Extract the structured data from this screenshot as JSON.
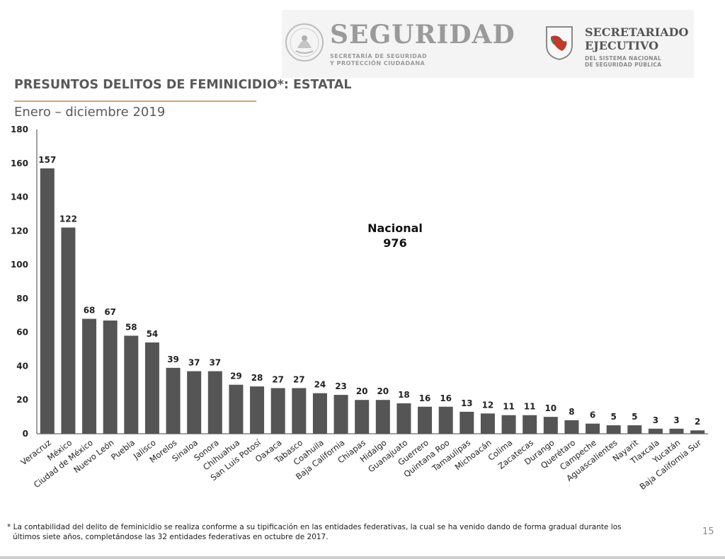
{
  "header": {
    "seg_title": "SEGURIDAD",
    "seg_sub_1": "SECRETARÍA DE SEGURIDAD",
    "seg_sub_2": "Y PROTECCIÓN CIUDADANA",
    "sec_title_1": "SECRETARIADO",
    "sec_title_2": "EJECUTIVO",
    "sec_sub_1": "DEL SISTEMA NACIONAL",
    "sec_sub_2": "DE SEGURIDAD PÚBLICA"
  },
  "page": {
    "title": "PRESUNTOS DELITOS DE FEMINICIDIO*: ESTATAL",
    "subtitle": "Enero – diciembre 2019",
    "footnote_line1": "* La contabilidad del delito de feminicidio se realiza conforme a su tipificación en las entidades federativas, la cual se ha venido dando de forma gradual durante los",
    "footnote_line2": "últimos siete años, completándose las 32 entidades federativas en octubre de 2017.",
    "page_number": "15"
  },
  "colors": {
    "bar": "#555555",
    "accent_rule": "#c9a57a",
    "title_gray": "#595959"
  },
  "chart_data": {
    "type": "bar",
    "title": "PRESUNTOS DELITOS DE FEMINICIDIO*: ESTATAL",
    "subtitle": "Enero – diciembre 2019",
    "categories": [
      "Veracruz",
      "México",
      "Ciudad de México",
      "Nuevo León",
      "Puebla",
      "Jalisco",
      "Morelos",
      "Sinaloa",
      "Sonora",
      "Chihuahua",
      "San Luis Potosí",
      "Oaxaca",
      "Tabasco",
      "Coahuila",
      "Baja California",
      "Chiapas",
      "Hidalgo",
      "Guanajuato",
      "Guerrero",
      "Quintana Roo",
      "Tamaulipas",
      "Michoacán",
      "Colima",
      "Zacatecas",
      "Durango",
      "Querétaro",
      "Campeche",
      "Aguascalientes",
      "Nayarit",
      "Tlaxcala",
      "Yucatán",
      "Baja California Sur"
    ],
    "values": [
      157,
      122,
      68,
      67,
      58,
      54,
      39,
      37,
      37,
      29,
      28,
      27,
      27,
      24,
      23,
      20,
      20,
      18,
      16,
      16,
      13,
      12,
      11,
      11,
      10,
      8,
      6,
      5,
      5,
      3,
      3,
      2
    ],
    "yticks": [
      0,
      20,
      40,
      60,
      80,
      100,
      120,
      140,
      160,
      180
    ],
    "ylim": [
      0,
      180
    ],
    "grid": false,
    "annotation_label": "Nacional",
    "annotation_value": "976"
  }
}
